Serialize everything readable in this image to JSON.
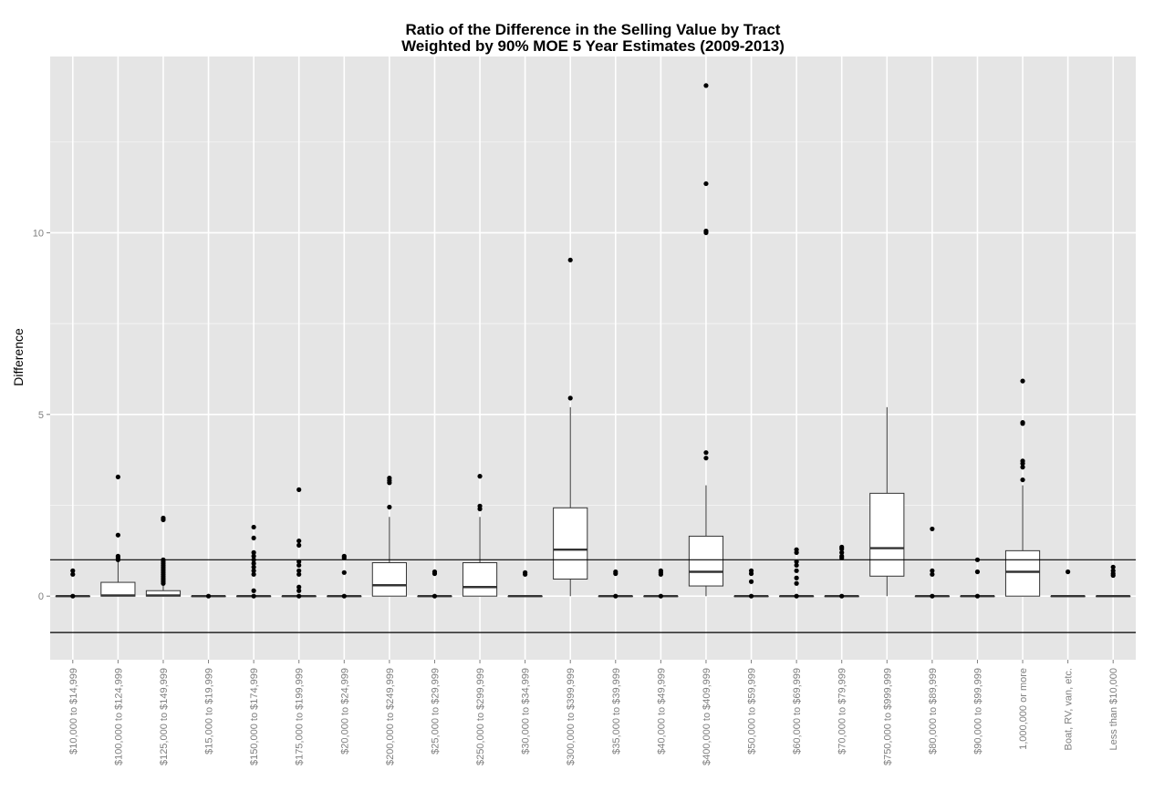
{
  "chart_data": {
    "type": "boxplot",
    "title": "Ratio of the Difference in the Selling Value by Tract",
    "subtitle": "Weighted by 90% MOE 5 Year Estimates (2009-2013)",
    "xlabel": "",
    "ylabel": "Difference",
    "ylim": [
      -1.75,
      14.85
    ],
    "yticks": [
      0,
      5,
      10
    ],
    "grid": true,
    "reference_lines": [
      1,
      -1
    ],
    "colors": {
      "panel": "#e5e5e5",
      "grid_major": "#ffffff",
      "grid_minor": "#f2f2f2",
      "box_fill": "#ffffff",
      "ink": "#333333",
      "tick_text": "#7f7f7f"
    },
    "categories": [
      "$10,000 to $14,999",
      "$100,000 to $124,999",
      "$125,000 to $149,999",
      "$15,000 to $19,999",
      "$150,000 to $174,999",
      "$175,000 to $199,999",
      "$20,000 to $24,999",
      "$200,000 to $249,999",
      "$25,000 to $29,999",
      "$250,000 to $299,999",
      "$30,000 to $34,999",
      "$300,000 to $399,999",
      "$35,000 to $39,999",
      "$40,000 to $49,999",
      "$400,000 to $409,999",
      "$50,000 to $59,999",
      "$60,000 to $69,999",
      "$70,000 to $79,999",
      "$750,000 to $999,999",
      "$80,000 to $89,999",
      "$90,000 to $99,999",
      "1,000,000 or more",
      "Boat, RV, van, etc.",
      "Less than $10,000"
    ],
    "boxes": [
      {
        "q1": 0,
        "median": 0,
        "q3": 0,
        "whisker_low": 0,
        "whisker_high": 0,
        "outliers": [
          0.7,
          0.6,
          0
        ]
      },
      {
        "q1": 0,
        "median": 0.02,
        "q3": 0.38,
        "whisker_low": 0,
        "whisker_high": 0.95,
        "outliers": [
          3.28,
          1.68,
          1.1,
          1.05,
          1.0
        ]
      },
      {
        "q1": 0,
        "median": 0.02,
        "q3": 0.15,
        "whisker_low": 0,
        "whisker_high": 0.3,
        "outliers": [
          2.15,
          2.1,
          1.0,
          0.95,
          0.9,
          0.85,
          0.8,
          0.75,
          0.7,
          0.65,
          0.6,
          0.55,
          0.5,
          0.45,
          0.4,
          0.35
        ]
      },
      {
        "q1": 0,
        "median": 0,
        "q3": 0,
        "whisker_low": 0,
        "whisker_high": 0,
        "outliers": [
          0
        ]
      },
      {
        "q1": 0,
        "median": 0,
        "q3": 0,
        "whisker_low": 0,
        "whisker_high": 0,
        "outliers": [
          1.9,
          1.6,
          1.2,
          1.1,
          1.0,
          0.9,
          0.8,
          0.7,
          0.6,
          0.15,
          0
        ]
      },
      {
        "q1": 0,
        "median": 0,
        "q3": 0,
        "whisker_low": 0,
        "whisker_high": 0,
        "outliers": [
          2.93,
          1.52,
          1.4,
          0.95,
          0.85,
          0.7,
          0.6,
          0.25,
          0.15,
          0
        ]
      },
      {
        "q1": 0,
        "median": 0,
        "q3": 0,
        "whisker_low": 0,
        "whisker_high": 0,
        "outliers": [
          1.1,
          1.05,
          0.65,
          0
        ]
      },
      {
        "q1": 0,
        "median": 0.3,
        "q3": 0.92,
        "whisker_low": 0,
        "whisker_high": 2.18,
        "outliers": [
          3.25,
          3.18,
          3.12,
          2.45
        ]
      },
      {
        "q1": 0,
        "median": 0,
        "q3": 0,
        "whisker_low": 0,
        "whisker_high": 0,
        "outliers": [
          0.67,
          0.62,
          0
        ]
      },
      {
        "q1": 0,
        "median": 0.25,
        "q3": 0.92,
        "whisker_low": 0,
        "whisker_high": 2.18,
        "outliers": [
          3.3,
          2.48,
          2.4
        ]
      },
      {
        "q1": 0,
        "median": 0,
        "q3": 0,
        "whisker_low": 0,
        "whisker_high": 0,
        "outliers": [
          0.65,
          0.6
        ]
      },
      {
        "q1": 0.47,
        "median": 1.28,
        "q3": 2.43,
        "whisker_low": 0,
        "whisker_high": 5.2,
        "outliers": [
          9.25,
          5.45
        ]
      },
      {
        "q1": 0,
        "median": 0,
        "q3": 0,
        "whisker_low": 0,
        "whisker_high": 0,
        "outliers": [
          0.67,
          0.62,
          0
        ]
      },
      {
        "q1": 0,
        "median": 0,
        "q3": 0,
        "whisker_low": 0,
        "whisker_high": 0,
        "outliers": [
          0.7,
          0.65,
          0.6,
          0
        ]
      },
      {
        "q1": 0.28,
        "median": 0.67,
        "q3": 1.65,
        "whisker_low": 0,
        "whisker_high": 3.05,
        "outliers": [
          14.05,
          11.35,
          10.05,
          10.0,
          3.95,
          3.8
        ]
      },
      {
        "q1": 0,
        "median": 0,
        "q3": 0,
        "whisker_low": 0,
        "whisker_high": 0,
        "outliers": [
          0.7,
          0.62,
          0.4,
          0
        ]
      },
      {
        "q1": 0,
        "median": 0,
        "q3": 0,
        "whisker_low": 0,
        "whisker_high": 0,
        "outliers": [
          1.28,
          1.2,
          0.95,
          0.85,
          0.7,
          0.5,
          0.35,
          0
        ]
      },
      {
        "q1": 0,
        "median": 0,
        "q3": 0,
        "whisker_low": 0,
        "whisker_high": 0,
        "outliers": [
          1.35,
          1.3,
          1.2,
          1.1,
          1.05,
          0
        ]
      },
      {
        "q1": 0.55,
        "median": 1.32,
        "q3": 2.83,
        "whisker_low": 0,
        "whisker_high": 5.2,
        "outliers": []
      },
      {
        "q1": 0,
        "median": 0,
        "q3": 0,
        "whisker_low": 0,
        "whisker_high": 0,
        "outliers": [
          1.85,
          0.7,
          0.6,
          0
        ]
      },
      {
        "q1": 0,
        "median": 0,
        "q3": 0,
        "whisker_low": 0,
        "whisker_high": 0,
        "outliers": [
          1.0,
          0.67,
          0
        ]
      },
      {
        "q1": 0,
        "median": 0.67,
        "q3": 1.25,
        "whisker_low": 0,
        "whisker_high": 3.05,
        "outliers": [
          5.92,
          4.78,
          4.75,
          3.72,
          3.65,
          3.55,
          3.2
        ]
      },
      {
        "q1": 0,
        "median": 0,
        "q3": 0,
        "whisker_low": 0,
        "whisker_high": 0,
        "outliers": [
          0.67
        ]
      },
      {
        "q1": 0,
        "median": 0,
        "q3": 0,
        "whisker_low": 0,
        "whisker_high": 0,
        "outliers": [
          0.8,
          0.7,
          0.62,
          0.57
        ]
      }
    ]
  }
}
